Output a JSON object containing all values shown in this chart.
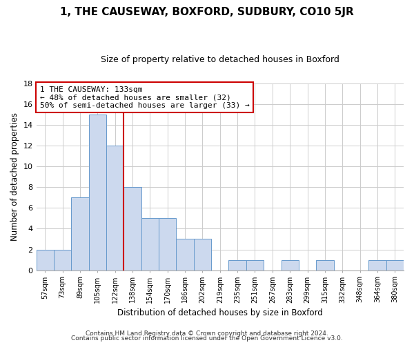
{
  "title": "1, THE CAUSEWAY, BOXFORD, SUDBURY, CO10 5JR",
  "subtitle": "Size of property relative to detached houses in Boxford",
  "xlabel": "Distribution of detached houses by size in Boxford",
  "ylabel": "Number of detached properties",
  "bar_labels": [
    "57sqm",
    "73sqm",
    "89sqm",
    "105sqm",
    "122sqm",
    "138sqm",
    "154sqm",
    "170sqm",
    "186sqm",
    "202sqm",
    "219sqm",
    "235sqm",
    "251sqm",
    "267sqm",
    "283sqm",
    "299sqm",
    "315sqm",
    "332sqm",
    "348sqm",
    "364sqm",
    "380sqm"
  ],
  "bar_values": [
    2,
    2,
    7,
    15,
    12,
    8,
    5,
    5,
    3,
    3,
    0,
    1,
    1,
    0,
    1,
    0,
    1,
    0,
    0,
    1,
    1
  ],
  "bar_color": "#ccd9ee",
  "bar_edge_color": "#6699cc",
  "vline_color": "#cc0000",
  "annotation_text": "1 THE CAUSEWAY: 133sqm\n← 48% of detached houses are smaller (32)\n50% of semi-detached houses are larger (33) →",
  "annotation_box_edge": "#cc0000",
  "ylim": [
    0,
    18
  ],
  "yticks": [
    0,
    2,
    4,
    6,
    8,
    10,
    12,
    14,
    16,
    18
  ],
  "footer_line1": "Contains HM Land Registry data © Crown copyright and database right 2024.",
  "footer_line2": "Contains public sector information licensed under the Open Government Licence v3.0.",
  "background_color": "#ffffff",
  "grid_color": "#cccccc"
}
